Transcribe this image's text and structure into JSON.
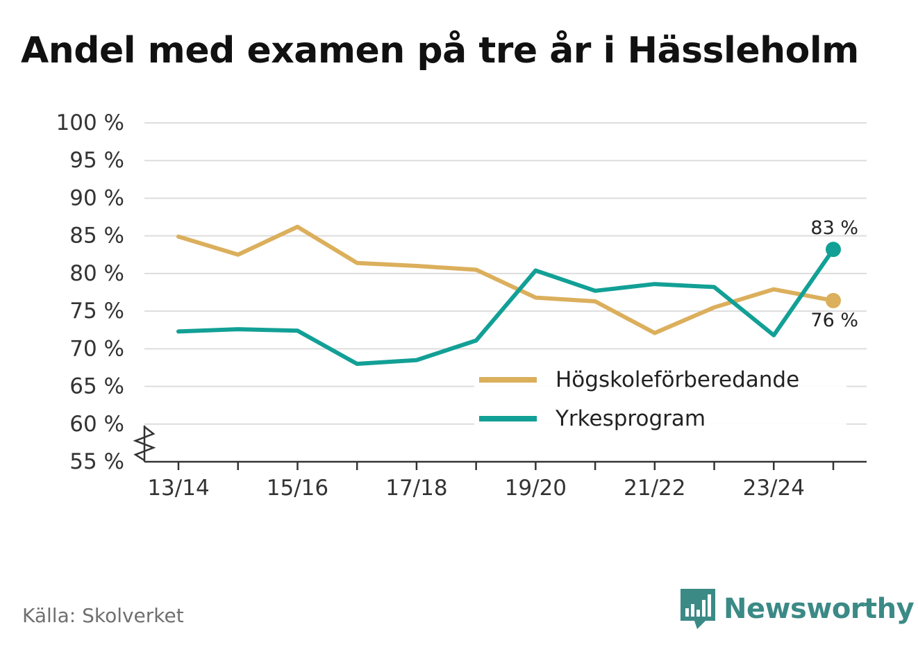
{
  "title": "Andel med examen på tre år i Hässleholm",
  "source": "Källa: Skolverket",
  "brand": {
    "name": "Newsworthy",
    "icon": "bar-chart-speech-bubble-icon",
    "color": "#3b8a86"
  },
  "chart_data": {
    "type": "line",
    "x": [
      "13/14",
      "14/15",
      "15/16",
      "16/17",
      "17/18",
      "18/19",
      "19/20",
      "20/21",
      "21/22",
      "22/23",
      "23/24",
      "24/25"
    ],
    "x_tick_labels": [
      "13/14",
      "15/16",
      "17/18",
      "19/20",
      "21/22",
      "23/24"
    ],
    "ylim": [
      55,
      100
    ],
    "y_ticks": [
      55,
      60,
      65,
      70,
      75,
      80,
      85,
      90,
      95,
      100
    ],
    "y_tick_suffix": " %",
    "axis_break": true,
    "grid": true,
    "legend_position": "bottom-right",
    "series": [
      {
        "name": "Högskoleförberedande",
        "color": "#dbaf5c",
        "values": [
          84.9,
          82.5,
          86.2,
          81.4,
          81.0,
          80.5,
          76.8,
          76.3,
          72.1,
          75.5,
          77.9,
          76.4
        ],
        "end_label": "76 %"
      },
      {
        "name": "Yrkesprogram",
        "color": "#12a096",
        "values": [
          72.3,
          72.6,
          72.4,
          68.0,
          68.5,
          71.1,
          80.4,
          77.7,
          78.6,
          78.2,
          71.8,
          83.2
        ],
        "end_label": "83 %"
      }
    ]
  }
}
